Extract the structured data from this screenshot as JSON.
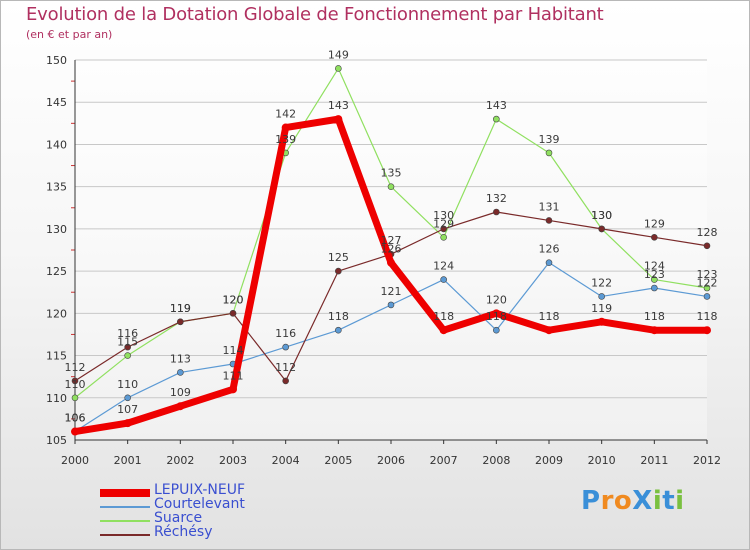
{
  "title": "Evolution de la Dotation Globale de Fonctionnement par Habitant",
  "subtitle": "(en € et par an)",
  "logo": {
    "text": "ProXiti",
    "letters": [
      "P",
      "r",
      "o",
      "X",
      "i",
      "t",
      "i"
    ]
  },
  "colors": {
    "title": "#b03060",
    "legend_text": "#3a4fd0",
    "axis": "#333333",
    "grid": "#c8c8c8"
  },
  "chart_data": {
    "type": "line",
    "title": "Evolution de la Dotation Globale de Fonctionnement par Habitant",
    "subtitle": "(en € et par an)",
    "xlabel": "",
    "ylabel": "",
    "x": [
      "2000",
      "2001",
      "2002",
      "2003",
      "2004",
      "2005",
      "2006",
      "2007",
      "2008",
      "2009",
      "2010",
      "2011",
      "2012"
    ],
    "yticks": [
      "105",
      "110",
      "115",
      "120",
      "125",
      "130",
      "135",
      "140",
      "145",
      "150"
    ],
    "ylim": [
      105,
      150
    ],
    "grid": "horizontal",
    "legend_position": "bottom-left",
    "series": [
      {
        "name": "LEPUIX-NEUF",
        "color": "#ee0000",
        "values": [
          106,
          107,
          109,
          111,
          142,
          143,
          126,
          118,
          120,
          118,
          119,
          118,
          118
        ],
        "labels": [
          "106",
          "107",
          "109",
          "111",
          "142",
          "143",
          "126",
          "118",
          "120",
          "118",
          "119",
          "118",
          "118"
        ]
      },
      {
        "name": "Courtelevant",
        "color": "#5c9ad4",
        "values": [
          106,
          110,
          113,
          114,
          116,
          118,
          121,
          124,
          118,
          126,
          122,
          123,
          122
        ],
        "labels": [
          "106",
          "110",
          "113",
          "114",
          "116",
          "118",
          "121",
          "124",
          "118",
          "126",
          "122",
          "123",
          "122"
        ]
      },
      {
        "name": "Suarce",
        "color": "#90e060",
        "values": [
          110,
          115,
          119,
          120,
          139,
          149,
          135,
          129,
          143,
          139,
          130,
          124,
          123
        ],
        "labels": [
          "110",
          "115",
          "119",
          "120",
          "139",
          "149",
          "135",
          "129",
          "143",
          "139",
          "130",
          "124",
          "123"
        ]
      },
      {
        "name": "Réchésy",
        "color": "#7a2a2a",
        "values": [
          112,
          116,
          119,
          120,
          112,
          125,
          127,
          130,
          132,
          131,
          130,
          129,
          128
        ],
        "labels": [
          "112",
          "116",
          "119",
          "120",
          "112",
          "125",
          "127",
          "130",
          "132",
          "131",
          "130",
          "129",
          "128"
        ]
      }
    ]
  }
}
